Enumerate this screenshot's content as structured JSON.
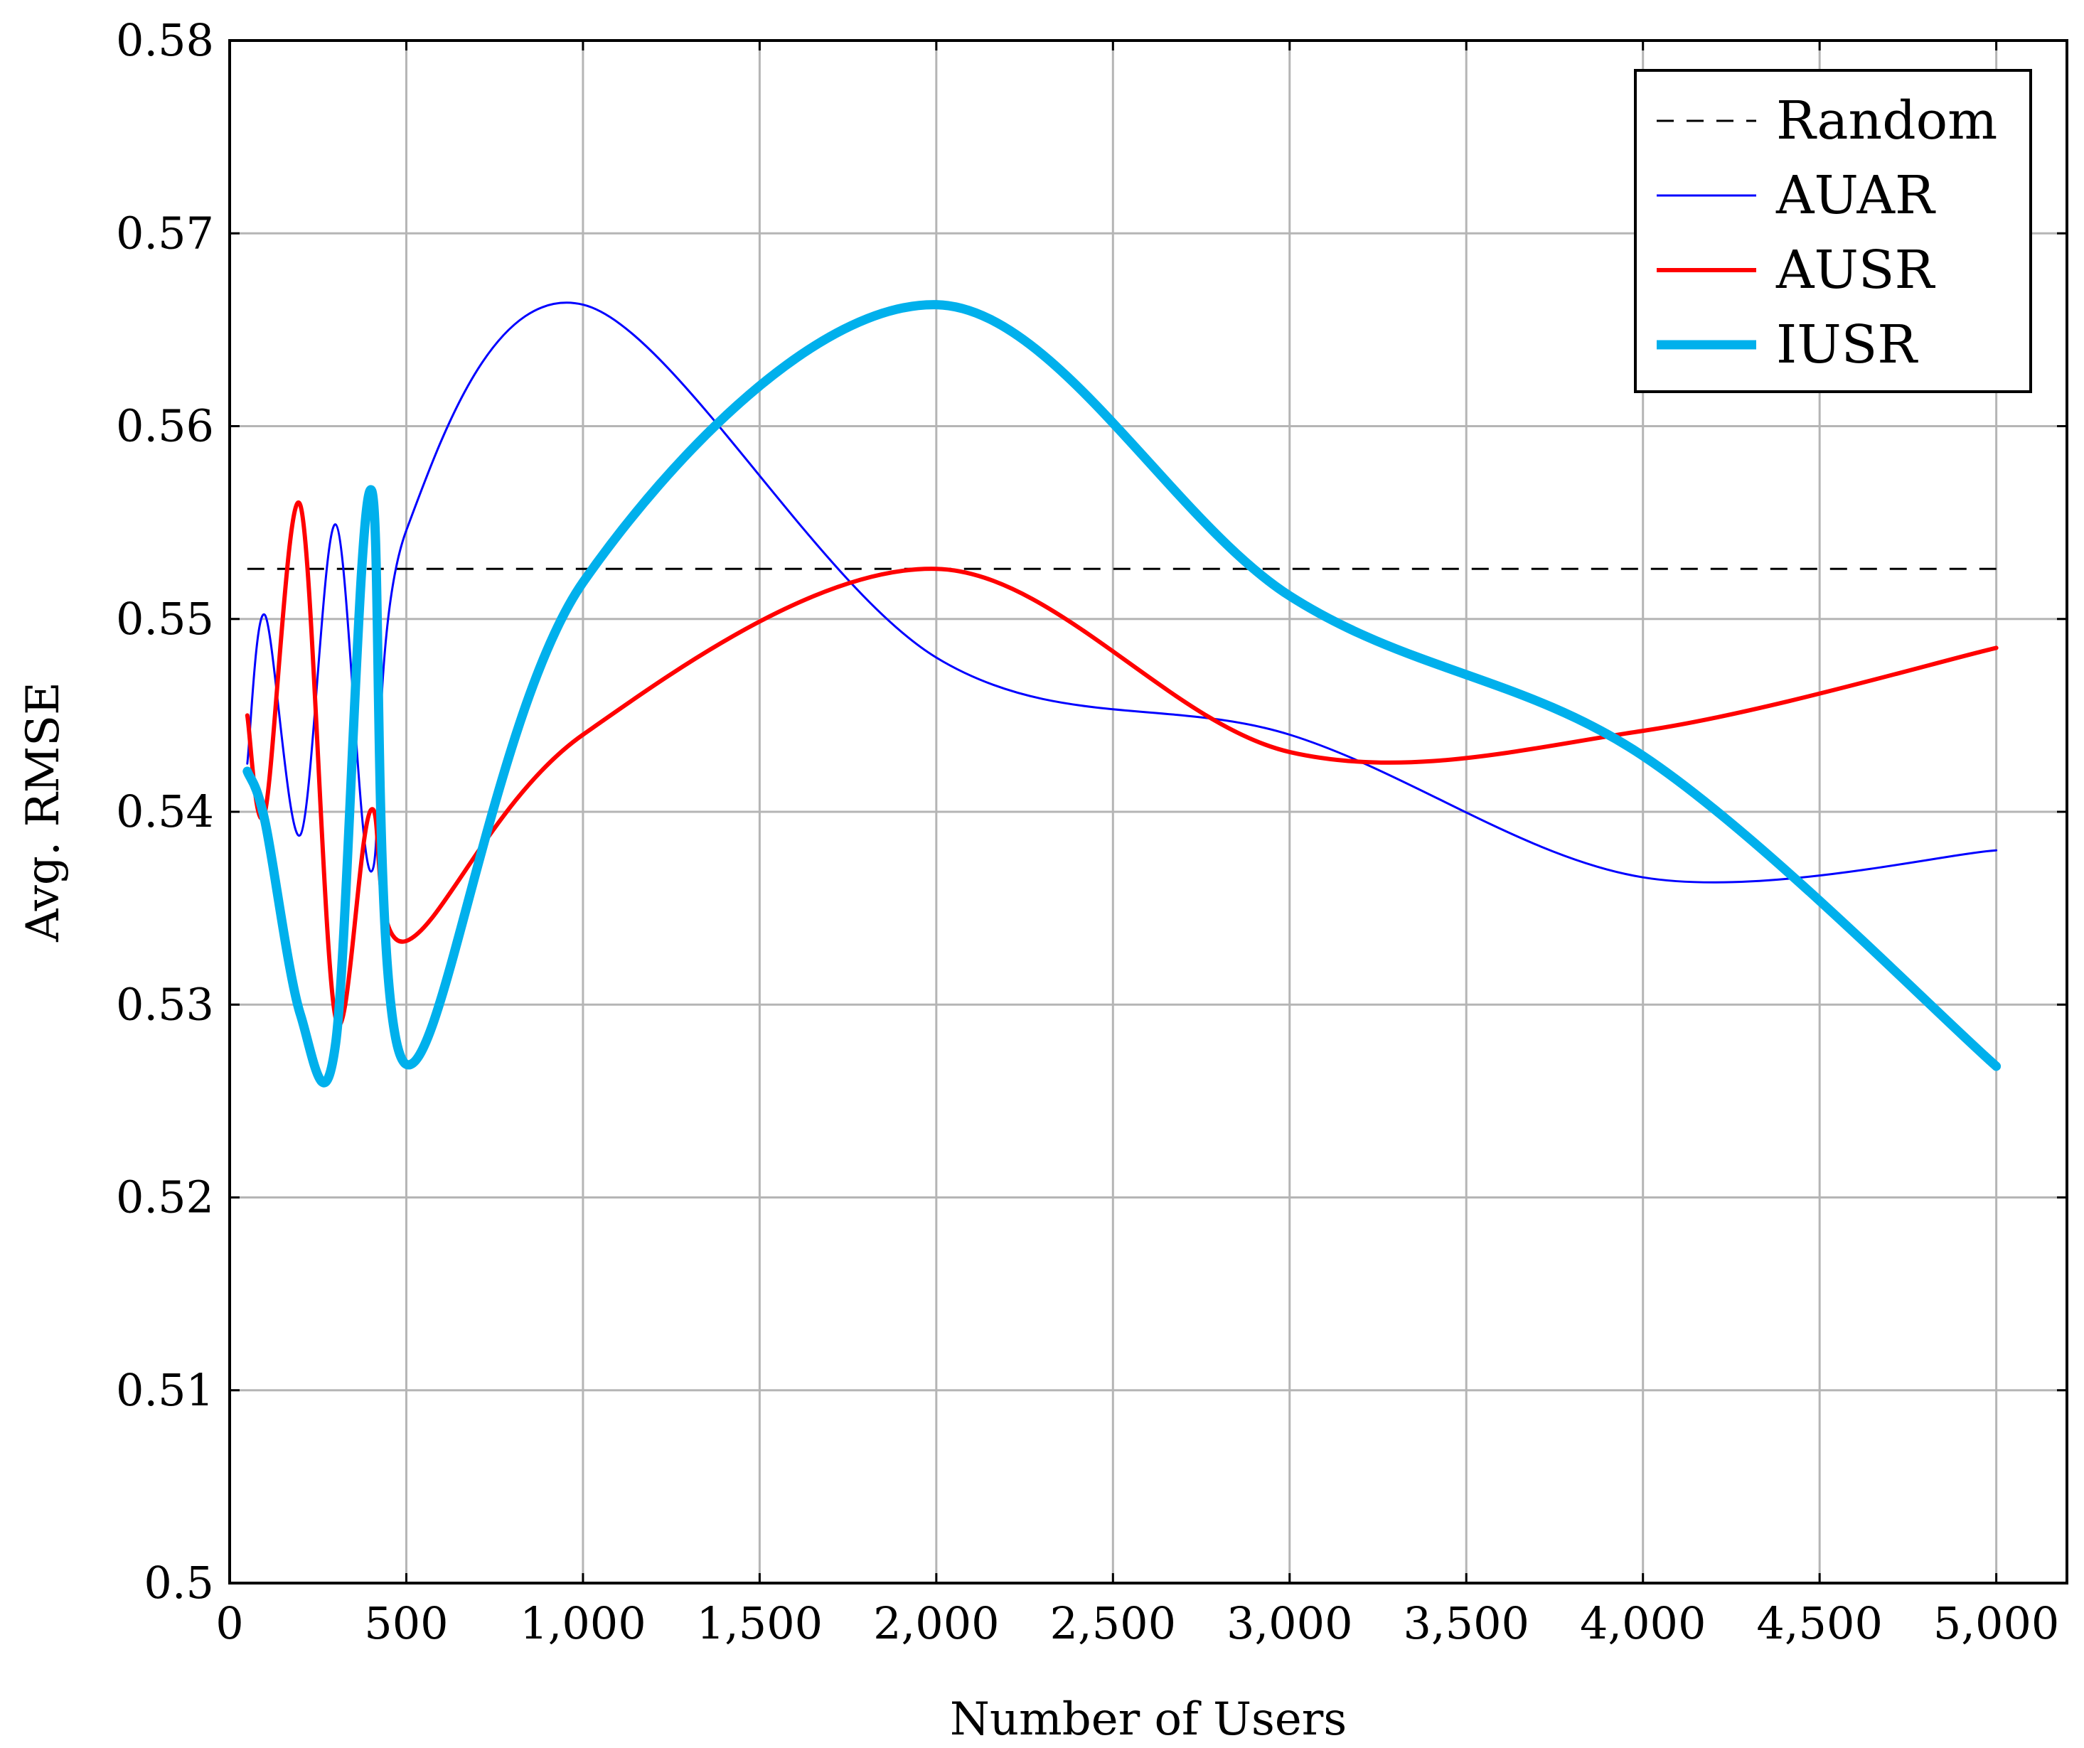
{
  "chart_data": {
    "type": "line",
    "title": "",
    "xlabel": "Number of Users",
    "ylabel": "Avg. RMSE",
    "xlim": [
      0,
      5200
    ],
    "ylim": [
      0.5,
      0.58
    ],
    "grid": true,
    "legend_position": "top-right",
    "x_ticks": [
      0,
      500,
      1000,
      1500,
      2000,
      2500,
      3000,
      3500,
      4000,
      4500,
      5000
    ],
    "x_tick_labels": [
      "0",
      "500",
      "1,000",
      "1,500",
      "2,000",
      "2,500",
      "3,000",
      "3,500",
      "4,000",
      "4,500",
      "5,000"
    ],
    "y_ticks": [
      0.5,
      0.51,
      0.52,
      0.53,
      0.54,
      0.55,
      0.56,
      0.57,
      0.58
    ],
    "y_tick_labels": [
      "0.5",
      "0.51",
      "0.52",
      "0.53",
      "0.54",
      "0.55",
      "0.56",
      "0.57",
      "0.58"
    ],
    "series": [
      {
        "name": "Random",
        "color": "#000000",
        "style": "dashed",
        "x": [
          50,
          5000
        ],
        "values": [
          0.5526,
          0.5526
        ]
      },
      {
        "name": "AUAR",
        "color": "#0000ff",
        "style": "thin",
        "x": [
          50,
          100,
          200,
          300,
          400,
          500,
          1000,
          2000,
          3000,
          4000,
          5000
        ],
        "values": [
          0.5425,
          0.5502,
          0.5388,
          0.5549,
          0.5369,
          0.5546,
          0.5663,
          0.548,
          0.544,
          0.5366,
          0.538
        ]
      },
      {
        "name": "AUSR",
        "color": "#ff0000",
        "style": "medium",
        "x": [
          50,
          100,
          200,
          300,
          400,
          500,
          1000,
          2000,
          3000,
          4000,
          5000
        ],
        "values": [
          0.545,
          0.54,
          0.5559,
          0.5293,
          0.5401,
          0.5333,
          0.544,
          0.5526,
          0.5431,
          0.5442,
          0.5485
        ]
      },
      {
        "name": "IUSR",
        "color": "#00b0ec",
        "style": "thick",
        "x": [
          50,
          100,
          200,
          300,
          400,
          500,
          1000,
          2000,
          3000,
          4000,
          5000
        ],
        "values": [
          0.5421,
          0.5395,
          0.5295,
          0.528,
          0.5567,
          0.5269,
          0.5519,
          0.5663,
          0.5512,
          0.5429,
          0.5268
        ]
      }
    ]
  }
}
